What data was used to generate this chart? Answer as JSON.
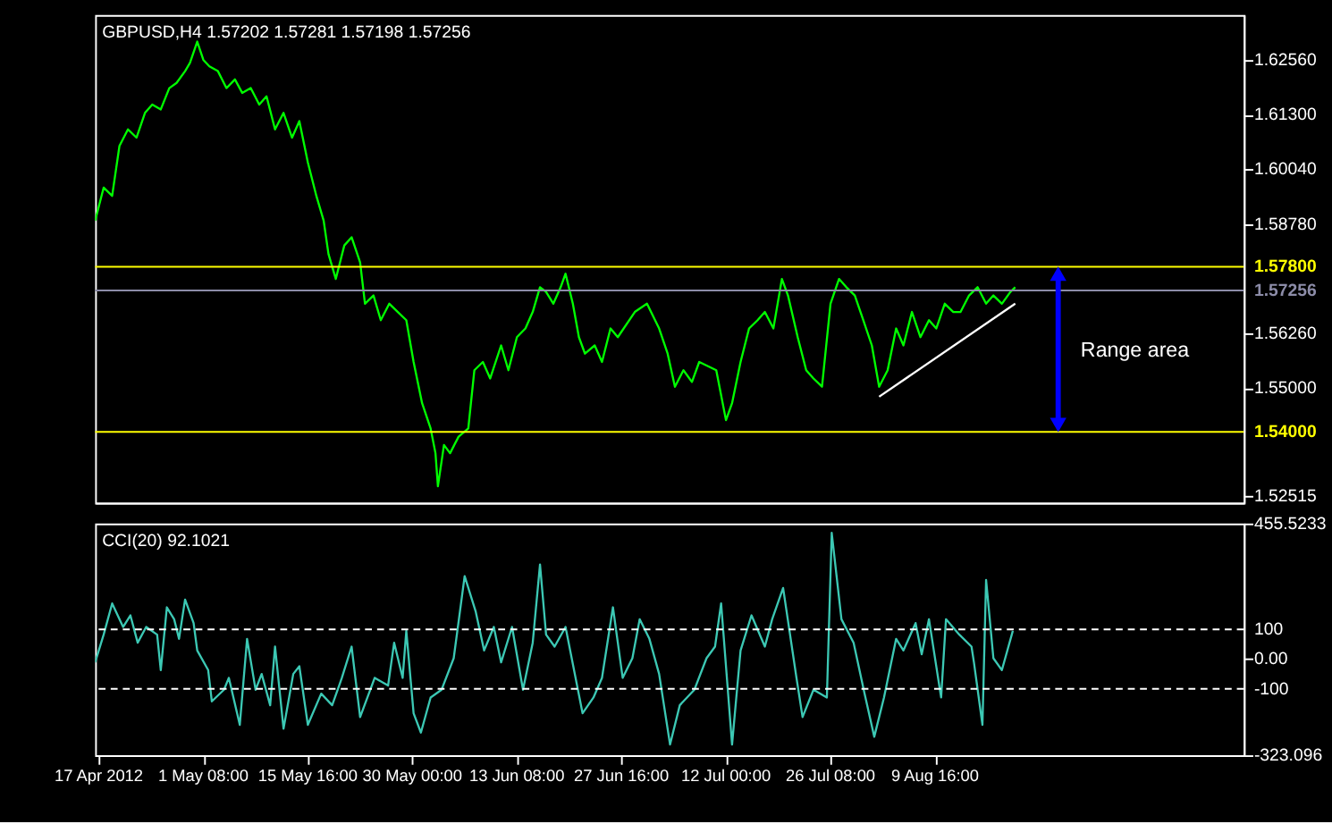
{
  "chart_data": [
    {
      "type": "line",
      "title": "GBPUSD,H4  1.57202 1.57281 1.57198 1.57256",
      "marker": "none",
      "line_style": "solid",
      "grid": false,
      "tick_labels": "y",
      "xlim": [
        "2012-04-16T12:00",
        "2012-09-21T00:00"
      ],
      "ylim": [
        1.5237,
        1.6359
      ],
      "yticks": [
        {
          "value": 1.6256,
          "label": "1.62560"
        },
        {
          "value": 1.613,
          "label": "1.61300"
        },
        {
          "value": 1.6004,
          "label": "1.60040"
        },
        {
          "value": 1.5878,
          "label": "1.58780"
        },
        {
          "value": 1.5626,
          "label": "1.56260"
        },
        {
          "value": 1.55,
          "label": "1.55000"
        },
        {
          "value": 1.52515,
          "label": "1.52515"
        }
      ],
      "ref_lines": [
        {
          "axis": "y",
          "value": 1.578,
          "label": "1.57800",
          "color": "#ffff00",
          "line_style": "solid"
        },
        {
          "axis": "y",
          "value": 1.54,
          "label": "1.54000",
          "color": "#ffff00",
          "line_style": "solid"
        },
        {
          "axis": "y",
          "value": 1.57256,
          "label": "1.57256",
          "color": "#8c8ca8",
          "line_style": "solid"
        }
      ],
      "annotations": [
        "Range area"
      ],
      "series": [
        {
          "color": "#00ff00",
          "x": [
            "2012-04-16T12:00",
            "2012-04-17T16:00",
            "2012-04-18T20:00",
            "2012-04-19T20:00",
            "2012-04-21T00:00",
            "2012-04-22T04:00",
            "2012-04-23T08:00",
            "2012-04-24T08:00",
            "2012-04-25T12:00",
            "2012-04-26T16:00",
            "2012-04-27T16:00",
            "2012-04-28T20:00",
            "2012-04-29T12:00",
            "2012-04-30T12:00",
            "2012-05-01T08:00",
            "2012-05-02T04:00",
            "2012-05-03T08:00",
            "2012-05-04T12:00",
            "2012-05-05T16:00",
            "2012-05-06T16:00",
            "2012-05-07T20:00",
            "2012-05-09T00:00",
            "2012-05-10T00:00",
            "2012-05-11T04:00",
            "2012-05-12T08:00",
            "2012-05-13T12:00",
            "2012-05-14T12:00",
            "2012-05-15T16:00",
            "2012-05-16T20:00",
            "2012-05-17T20:00",
            "2012-05-18T12:00",
            "2012-05-19T12:00",
            "2012-05-20T16:00",
            "2012-05-21T16:00",
            "2012-05-22T20:00",
            "2012-05-23T12:00",
            "2012-05-24T16:00",
            "2012-05-25T16:00",
            "2012-05-26T20:00",
            "2012-05-28T00:00",
            "2012-05-29T04:00",
            "2012-05-30T04:00",
            "2012-05-31T08:00",
            "2012-06-01T12:00",
            "2012-06-02T04:00",
            "2012-06-02T12:00",
            "2012-06-03T08:00",
            "2012-06-04T04:00",
            "2012-06-05T08:00",
            "2012-06-06T16:00",
            "2012-06-07T12:00",
            "2012-06-08T16:00",
            "2012-06-09T16:00",
            "2012-06-11T04:00",
            "2012-06-12T04:00",
            "2012-06-13T08:00",
            "2012-06-14T12:00",
            "2012-06-15T12:00",
            "2012-06-16T12:00",
            "2012-06-17T08:00",
            "2012-06-18T08:00",
            "2012-06-19T08:00",
            "2012-06-20T00:00",
            "2012-06-21T00:00",
            "2012-06-21T20:00",
            "2012-06-22T16:00",
            "2012-06-24T00:00",
            "2012-06-25T00:00",
            "2012-06-26T04:00",
            "2012-06-27T04:00",
            "2012-06-29T12:00",
            "2012-07-01T04:00",
            "2012-07-02T20:00",
            "2012-07-04T00:00",
            "2012-07-05T00:00",
            "2012-07-06T04:00",
            "2012-07-07T08:00",
            "2012-07-08T08:00",
            "2012-07-10T16:00",
            "2012-07-12T00:00",
            "2012-07-12T20:00",
            "2012-07-14T00:00",
            "2012-07-15T04:00",
            "2012-07-16T08:00",
            "2012-07-17T08:00",
            "2012-07-18T12:00",
            "2012-07-19T16:00",
            "2012-07-20T12:00",
            "2012-07-21T20:00",
            "2012-07-23T00:00",
            "2012-07-24T00:00",
            "2012-07-25T04:00",
            "2012-07-26T08:00",
            "2012-07-27T12:00",
            "2012-07-28T12:00",
            "2012-07-29T16:00",
            "2012-07-30T20:00",
            "2012-08-01T00:00",
            "2012-08-02T00:00",
            "2012-08-03T04:00",
            "2012-08-04T08:00",
            "2012-08-05T08:00",
            "2012-08-06T12:00",
            "2012-08-07T16:00",
            "2012-08-08T20:00",
            "2012-08-09T20:00",
            "2012-08-11T00:00",
            "2012-08-12T04:00",
            "2012-08-13T04:00",
            "2012-08-14T08:00",
            "2012-08-15T12:00",
            "2012-08-16T16:00",
            "2012-08-17T16:00",
            "2012-08-18T20:00",
            "2012-08-20T00:00",
            "2012-08-20T16:00"
          ],
          "values": [
            1.5886,
            1.5962,
            1.5943,
            1.6058,
            1.6096,
            1.6077,
            1.6134,
            1.6153,
            1.6142,
            1.6191,
            1.6203,
            1.623,
            1.6249,
            1.6298,
            1.6256,
            1.6241,
            1.623,
            1.6191,
            1.6211,
            1.618,
            1.6191,
            1.6153,
            1.6172,
            1.6096,
            1.6134,
            1.6077,
            1.6115,
            1.602,
            1.5943,
            1.5886,
            1.5809,
            1.5752,
            1.5829,
            1.5848,
            1.579,
            1.5695,
            1.5714,
            1.5657,
            1.5695,
            1.5676,
            1.5657,
            1.5561,
            1.5466,
            1.5408,
            1.5351,
            1.5275,
            1.537,
            1.5351,
            1.5389,
            1.5408,
            1.5542,
            1.5561,
            1.5523,
            1.5599,
            1.5542,
            1.5618,
            1.5638,
            1.5676,
            1.5733,
            1.5722,
            1.5695,
            1.5733,
            1.5764,
            1.5695,
            1.5618,
            1.558,
            1.5599,
            1.5561,
            1.5638,
            1.5618,
            1.5676,
            1.5695,
            1.5638,
            1.558,
            1.5504,
            1.5542,
            1.5515,
            1.5561,
            1.5542,
            1.5427,
            1.5466,
            1.5561,
            1.5638,
            1.5657,
            1.5676,
            1.5638,
            1.5752,
            1.5714,
            1.5618,
            1.5542,
            1.5523,
            1.5504,
            1.5695,
            1.5752,
            1.5733,
            1.5714,
            1.5657,
            1.5599,
            1.5504,
            1.5542,
            1.5638,
            1.5599,
            1.5676,
            1.5618,
            1.5657,
            1.5638,
            1.5695,
            1.5676,
            1.5676,
            1.5714,
            1.5733,
            1.5695,
            1.5714,
            1.5695,
            1.5722,
            1.5733
          ]
        },
        {
          "color": "#ffffff",
          "x": [
            "2012-08-02T00:00",
            "2012-08-20T16:00"
          ],
          "values": [
            1.5481,
            1.5695
          ]
        }
      ]
    },
    {
      "type": "line",
      "title": "CCI(20) 92.1021",
      "marker": "none",
      "line_style": "solid",
      "grid": false,
      "xlim": [
        "2012-04-16T12:00",
        "2012-09-21T00:00"
      ],
      "ylim": [
        -323.096,
        455.5233
      ],
      "xticks": [
        {
          "value": "2012-04-17T00:00",
          "label": "17 Apr 2012"
        },
        {
          "value": "2012-05-01T08:00",
          "label": "1 May 08:00"
        },
        {
          "value": "2012-05-15T16:00",
          "label": "15 May 16:00"
        },
        {
          "value": "2012-05-30T00:00",
          "label": "30 May 00:00"
        },
        {
          "value": "2012-06-13T08:00",
          "label": "13 Jun 08:00"
        },
        {
          "value": "2012-06-27T16:00",
          "label": "27 Jun 16:00"
        },
        {
          "value": "2012-07-12T00:00",
          "label": "12 Jul 00:00"
        },
        {
          "value": "2012-07-26T08:00",
          "label": "26 Jul 08:00"
        },
        {
          "value": "2012-08-09T16:00",
          "label": "9 Aug 16:00"
        }
      ],
      "yticks": [
        455.5233,
        100,
        {
          "value": 0,
          "label": "0.00"
        },
        -100,
        -323.096
      ],
      "ref_lines": [
        {
          "axis": "y",
          "value": 100,
          "color": "#ffffff",
          "line_style": "dashed"
        },
        {
          "axis": "y",
          "value": -100,
          "color": "#ffffff",
          "line_style": "dashed"
        }
      ],
      "series": [
        {
          "color": "#3cc8b4",
          "x": [
            "2012-04-16T12:00",
            "2012-04-17T16:00",
            "2012-04-18T20:00",
            "2012-04-20T08:00",
            "2012-04-21T08:00",
            "2012-04-22T08:00",
            "2012-04-23T12:00",
            "2012-04-25T00:00",
            "2012-04-25T12:00",
            "2012-04-26T08:00",
            "2012-04-27T08:00",
            "2012-04-28T00:00",
            "2012-04-28T20:00",
            "2012-04-30T00:00",
            "2012-04-30T12:00",
            "2012-05-02T00:00",
            "2012-05-02T12:00",
            "2012-05-04T04:00",
            "2012-05-04T20:00",
            "2012-05-06T08:00",
            "2012-05-07T08:00",
            "2012-05-08T12:00",
            "2012-05-09T08:00",
            "2012-05-10T12:00",
            "2012-05-11T04:00",
            "2012-05-12T08:00",
            "2012-05-13T16:00",
            "2012-05-14T12:00",
            "2012-05-15T16:00",
            "2012-05-17T12:00",
            "2012-05-19T00:00",
            "2012-05-20T08:00",
            "2012-05-21T16:00",
            "2012-05-22T20:00",
            "2012-05-24T20:00",
            "2012-05-26T16:00",
            "2012-05-27T12:00",
            "2012-05-28T16:00",
            "2012-05-29T04:00",
            "2012-05-30T04:00",
            "2012-05-31T04:00",
            "2012-06-01T12:00",
            "2012-06-03T00:00",
            "2012-06-04T16:00",
            "2012-06-06T04:00",
            "2012-06-07T16:00",
            "2012-06-08T20:00",
            "2012-06-10T04:00",
            "2012-06-11T04:00",
            "2012-06-12T16:00",
            "2012-06-14T04:00",
            "2012-06-15T12:00",
            "2012-06-16T12:00",
            "2012-06-17T08:00",
            "2012-06-18T12:00",
            "2012-06-20T00:00",
            "2012-06-22T08:00",
            "2012-06-23T20:00",
            "2012-06-25T00:00",
            "2012-06-26T12:00",
            "2012-06-27T20:00",
            "2012-06-29T04:00",
            "2012-06-30T04:00",
            "2012-07-01T12:00",
            "2012-07-02T20:00",
            "2012-07-04T08:00",
            "2012-07-05T16:00",
            "2012-07-07T16:00",
            "2012-07-09T08:00",
            "2012-07-10T12:00",
            "2012-07-11T08:00",
            "2012-07-12T20:00",
            "2012-07-14T00:00",
            "2012-07-15T12:00",
            "2012-07-17T08:00",
            "2012-07-18T08:00",
            "2012-07-19T20:00",
            "2012-07-21T16:00",
            "2012-07-22T12:00",
            "2012-07-24T00:00",
            "2012-07-25T20:00",
            "2012-07-26T12:00",
            "2012-07-27T20:00",
            "2012-07-29T12:00",
            "2012-07-31T00:00",
            "2012-08-01T08:00",
            "2012-08-02T16:00",
            "2012-08-04T08:00",
            "2012-08-05T08:00",
            "2012-08-07T00:00",
            "2012-08-07T20:00",
            "2012-08-08T20:00",
            "2012-08-10T12:00",
            "2012-08-11T04:00",
            "2012-08-13T00:00",
            "2012-08-14T16:00",
            "2012-08-15T00:00",
            "2012-08-16T04:00",
            "2012-08-16T16:00",
            "2012-08-17T16:00",
            "2012-08-18T20:00",
            "2012-08-20T08:00"
          ],
          "values": [
            -11,
            82,
            187,
            108,
            147,
            55,
            108,
            82,
            -37,
            174,
            134,
            68,
            200,
            121,
            29,
            -37,
            -142,
            -103,
            -63,
            -221,
            68,
            -103,
            -50,
            -155,
            42,
            -234,
            -50,
            -24,
            -221,
            -116,
            -155,
            -63,
            42,
            -195,
            -63,
            -89,
            55,
            -63,
            95,
            -182,
            -247,
            -129,
            -103,
            3,
            279,
            161,
            29,
            108,
            -11,
            108,
            -103,
            55,
            318,
            82,
            42,
            108,
            -182,
            -129,
            -63,
            174,
            -63,
            3,
            134,
            68,
            -50,
            -287,
            -155,
            -103,
            3,
            42,
            187,
            -287,
            29,
            147,
            42,
            134,
            239,
            -63,
            -195,
            -103,
            -129,
            424,
            134,
            55,
            -116,
            -261,
            -129,
            68,
            29,
            121,
            16,
            134,
            -129,
            134,
            82,
            42,
            -11,
            -221,
            266,
            3,
            -37,
            95
          ]
        }
      ]
    }
  ]
}
